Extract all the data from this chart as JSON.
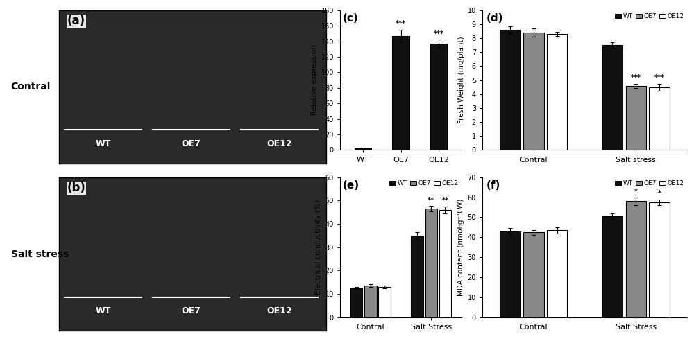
{
  "panel_c": {
    "categories": [
      "WT",
      "OE7",
      "OE12"
    ],
    "values": [
      2,
      147,
      137
    ],
    "errors": [
      1,
      8,
      5
    ],
    "colors": [
      "#111111",
      "#111111",
      "#111111"
    ],
    "ylabel": "Relative expression",
    "ylim": [
      0,
      180
    ],
    "yticks": [
      0,
      20,
      40,
      60,
      80,
      100,
      120,
      140,
      160,
      180
    ],
    "significance": [
      "",
      "***",
      "***"
    ],
    "label": "(c)"
  },
  "panel_d": {
    "group_labels": [
      "Contral",
      "Salt stress"
    ],
    "series": [
      "WT",
      "OE7",
      "OE12"
    ],
    "values": [
      [
        8.6,
        8.4,
        8.3
      ],
      [
        7.5,
        4.6,
        4.5
      ]
    ],
    "errors": [
      [
        0.25,
        0.3,
        0.15
      ],
      [
        0.2,
        0.15,
        0.25
      ]
    ],
    "colors": [
      "#111111",
      "#888888",
      "#ffffff"
    ],
    "ylabel": "Fresh Weight (mg/plant)",
    "ylim": [
      0,
      10
    ],
    "yticks": [
      0,
      1,
      2,
      3,
      4,
      5,
      6,
      7,
      8,
      9,
      10
    ],
    "significance": [
      [
        "",
        "",
        ""
      ],
      [
        "",
        "***",
        "***"
      ]
    ],
    "label": "(d)"
  },
  "panel_e": {
    "group_labels": [
      "Contral",
      "Salt Stress"
    ],
    "series": [
      "WT",
      "OE7",
      "OE12"
    ],
    "values": [
      [
        12.5,
        13.5,
        13.0
      ],
      [
        35.0,
        46.5,
        46.0
      ]
    ],
    "errors": [
      [
        0.5,
        0.6,
        0.5
      ],
      [
        1.5,
        1.2,
        1.5
      ]
    ],
    "colors": [
      "#111111",
      "#888888",
      "#ffffff"
    ],
    "ylabel": "Electrical conductivity (%)",
    "ylim": [
      0,
      60
    ],
    "yticks": [
      0,
      10,
      20,
      30,
      40,
      50,
      60
    ],
    "significance": [
      [
        "",
        "",
        ""
      ],
      [
        "",
        "**",
        "**"
      ]
    ],
    "label": "(e)"
  },
  "panel_f": {
    "group_labels": [
      "Contral",
      "Salt Stress"
    ],
    "series": [
      "WT",
      "OE7",
      "OE12"
    ],
    "values": [
      [
        43.0,
        42.5,
        43.5
      ],
      [
        50.5,
        58.0,
        57.5
      ]
    ],
    "errors": [
      [
        1.5,
        1.2,
        1.5
      ],
      [
        1.5,
        1.8,
        1.5
      ]
    ],
    "colors": [
      "#111111",
      "#888888",
      "#ffffff"
    ],
    "ylabel": "MDA content (nmol·g⁻¹FW)",
    "ylim": [
      0,
      70
    ],
    "yticks": [
      0,
      10,
      20,
      30,
      40,
      50,
      60,
      70
    ],
    "significance": [
      [
        "",
        "",
        ""
      ],
      [
        "",
        "*",
        "*"
      ]
    ],
    "label": "(f)"
  },
  "photo_a_label": "(a)",
  "photo_b_label": "(b)",
  "contral_label": "Contral",
  "salt_stress_label": "Salt stress",
  "photo_bg_color": "#2a2a2a",
  "photo_border_color": "#000000"
}
